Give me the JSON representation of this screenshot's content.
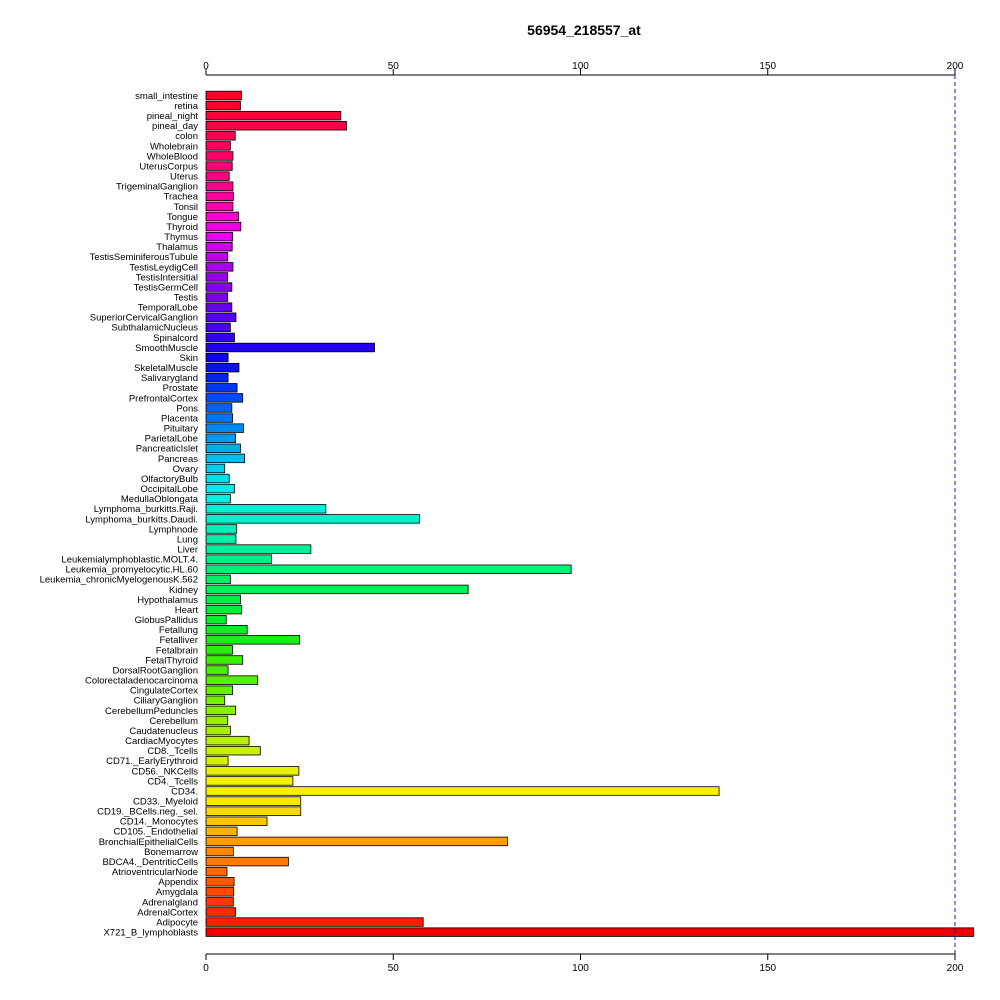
{
  "chart_data": {
    "type": "bar",
    "orientation": "horizontal",
    "title": "56954_218557_at",
    "xlabel": "",
    "ylabel": "",
    "xlim": [
      0,
      205
    ],
    "xticks": [
      0,
      50,
      100,
      150,
      200
    ],
    "reference_line": 200,
    "axes_top_and_bottom": true,
    "grid": false,
    "categories": [
      "small_intestine",
      "retina",
      "pineal_night",
      "pineal_day",
      "colon",
      "Wholebrain",
      "WholeBlood",
      "UterusCorpus",
      "Uterus",
      "TrigeminalGanglion",
      "Trachea",
      "Tonsil",
      "Tongue",
      "Thyroid",
      "Thymus",
      "Thalamus",
      "TestisSeminiferousTubule",
      "TestisLeydigCell",
      "TestisIntersitial",
      "TestisGermCell",
      "Testis",
      "TemporalLobe",
      "SuperiorCervicalGanglion",
      "SubthalamicNucleus",
      "Spinalcord",
      "SmoothMuscle",
      "Skin",
      "SkeletalMuscle",
      "Salivarygland",
      "Prostate",
      "PrefrontalCortex",
      "Pons",
      "Placenta",
      "Pituitary",
      "ParietalLobe",
      "PancreaticIslet",
      "Pancreas",
      "Ovary",
      "OlfactoryBulb",
      "OccipitalLobe",
      "MedullaOblongata",
      "Lymphoma_burkitts.Raji.",
      "Lymphoma_burkitts.Daudi.",
      "Lymphnode",
      "Lung",
      "Liver",
      "Leukemialymphoblastic.MOLT.4.",
      "Leukemia_promyelocytic.HL.60",
      "Leukemia_chronicMyelogenousK.562",
      "Kidney",
      "Hypothalamus",
      "Heart",
      "GlobusPallidus",
      "Fetallung",
      "Fetalliver",
      "Fetalbrain",
      "FetalThyroid",
      "DorsalRootGanglion",
      "Colorectaladenocarcinoma",
      "CingulateCortex",
      "CiliaryGanglion",
      "CerebellumPeduncles",
      "Cerebellum",
      "Caudatenucleus",
      "CardiacMyocytes",
      "CD8._Tcells",
      "CD71._EarlyErythroid",
      "CD56._NKCells",
      "CD4._Tcells",
      "CD34.",
      "CD33._Myeloid",
      "CD19._BCells.neg._sel.",
      "CD14._Monocytes",
      "CD105._Endothelial",
      "BronchialEpithelialCells",
      "Bonemarrow",
      "BDCA4._DentriticCells",
      "AtrioventricularNode",
      "Appendix",
      "Amygdala",
      "Adrenalgland",
      "AdrenalCortex",
      "Adipocyte",
      "X721_B_lymphoblasts"
    ],
    "values": [
      9.5,
      9.2,
      36,
      37.5,
      7.8,
      6.5,
      7.2,
      7.0,
      6.2,
      7.2,
      7.3,
      7.2,
      8.7,
      9.3,
      7.1,
      7.0,
      5.8,
      7.2,
      5.8,
      6.9,
      5.8,
      6.9,
      8.0,
      6.5,
      7.6,
      45,
      5.9,
      8.8,
      5.9,
      8.3,
      9.8,
      6.9,
      7.1,
      10,
      7.9,
      9.2,
      10.3,
      5.0,
      6.2,
      7.6,
      6.5,
      32,
      57,
      8.2,
      8.0,
      28,
      17.5,
      97.5,
      6.5,
      70,
      9.2,
      9.5,
      5.4,
      11,
      25,
      7.1,
      9.8,
      5.9,
      13.8,
      7.1,
      5.0,
      7.9,
      5.8,
      6.5,
      11.5,
      14.5,
      5.9,
      24.8,
      23.2,
      137,
      25.3,
      25.3,
      16.3,
      8.3,
      80.5,
      7.3,
      22,
      5.6,
      7.5,
      7.4,
      7.3,
      7.9,
      58,
      205
    ],
    "colors": [
      "#ff0028",
      "#ff002a",
      "#ff0038",
      "#ff0045",
      "#ff0050",
      "#ff005c",
      "#ff0068",
      "#ff0074",
      "#ff0080",
      "#ff008d",
      "#ff009c",
      "#ff00b0",
      "#fb00d0",
      "#f000e5",
      "#e400f0",
      "#d000ee",
      "#bb00ea",
      "#a700e8",
      "#9400e7",
      "#8500e8",
      "#7600ea",
      "#6600eb",
      "#5500ed",
      "#4500ef",
      "#3400f0",
      "#2400f0",
      "#1400f0",
      "#0a10f0",
      "#0024f0",
      "#0038f0",
      "#004cf0",
      "#0060f0",
      "#0074f0",
      "#0088f0",
      "#009af0",
      "#00acf0",
      "#00bef0",
      "#00cef0",
      "#00def0",
      "#00ebee",
      "#00f0e4",
      "#00f0d8",
      "#00f0c8",
      "#00f0b8",
      "#00f0a8",
      "#00f098",
      "#00f088",
      "#00f078",
      "#00f068",
      "#00f058",
      "#00f048",
      "#00f03a",
      "#00f02c",
      "#08f020",
      "#18f014",
      "#28f00a",
      "#38f000",
      "#48f000",
      "#58f000",
      "#68f000",
      "#78f000",
      "#88f000",
      "#98f000",
      "#a8f000",
      "#b8f000",
      "#c8f000",
      "#d8f000",
      "#e6f000",
      "#f0f000",
      "#f8f000",
      "#ffe800",
      "#ffd800",
      "#ffc400",
      "#ffb000",
      "#ff9c00",
      "#ff8800",
      "#ff7800",
      "#ff6800",
      "#ff5800",
      "#ff4800",
      "#ff3800",
      "#ff2800",
      "#ff1c00",
      "#ee0000"
    ]
  }
}
